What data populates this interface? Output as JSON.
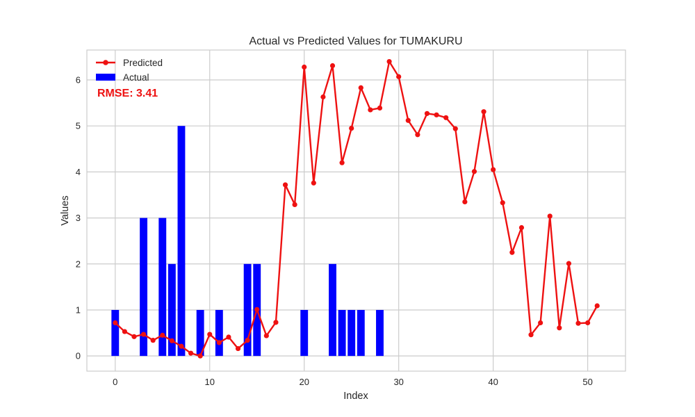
{
  "chart_data": {
    "type": "bar+line",
    "title": "Actual vs Predicted Values for TUMAKURU",
    "xlabel": "Index",
    "ylabel": "Values",
    "xlim": [
      -3,
      54
    ],
    "ylim": [
      -0.33,
      6.65
    ],
    "xticks": [
      0,
      10,
      20,
      30,
      40,
      50
    ],
    "yticks": [
      0,
      1,
      2,
      3,
      4,
      5,
      6
    ],
    "grid": true,
    "legend_position": "top-left",
    "annotation": "RMSE: 3.41",
    "actual": {
      "name": "Actual",
      "color": "#0000ff",
      "x": [
        0,
        3,
        5,
        6,
        7,
        9,
        11,
        14,
        15,
        20,
        23,
        24,
        25,
        26,
        28
      ],
      "values": [
        1,
        3,
        3,
        2,
        5,
        1,
        1,
        2,
        2,
        1,
        2,
        1,
        1,
        1,
        1
      ]
    },
    "predicted": {
      "name": "Predicted",
      "color": "#ee1111",
      "x": [
        0,
        1,
        2,
        3,
        4,
        5,
        6,
        7,
        8,
        9,
        10,
        11,
        12,
        13,
        14,
        15,
        16,
        17,
        18,
        19,
        20,
        21,
        22,
        23,
        24,
        25,
        26,
        27,
        28,
        29,
        30,
        31,
        32,
        33,
        34,
        35,
        36,
        37,
        38,
        39,
        40,
        41,
        42,
        43,
        44,
        45,
        46,
        47,
        48,
        49,
        50,
        51
      ],
      "values": [
        0.72,
        0.53,
        0.42,
        0.47,
        0.34,
        0.45,
        0.33,
        0.21,
        0.06,
        0.0,
        0.47,
        0.29,
        0.41,
        0.16,
        0.34,
        1.01,
        0.44,
        0.73,
        3.72,
        3.29,
        6.28,
        3.76,
        5.63,
        6.31,
        4.2,
        4.95,
        5.83,
        5.35,
        5.39,
        6.4,
        6.07,
        5.12,
        4.81,
        5.27,
        5.24,
        5.18,
        4.94,
        3.35,
        4.01,
        5.31,
        4.05,
        3.33,
        2.25,
        2.79,
        0.46,
        0.72,
        3.04,
        0.61,
        2.01,
        0.71,
        0.72,
        1.09
      ]
    }
  }
}
